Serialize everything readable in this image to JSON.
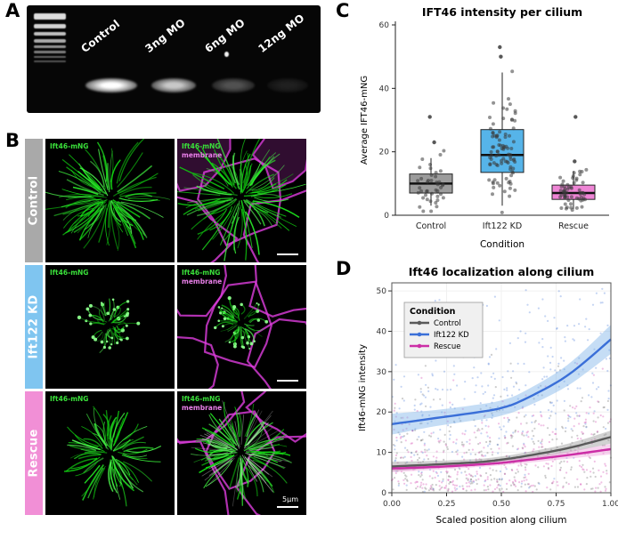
{
  "panel_a": {
    "label": "A",
    "lane_labels": [
      "Control",
      "3ng MO",
      "6ng MO",
      "12ng MO"
    ],
    "band_intensities": [
      1,
      0.78,
      0.3,
      0.1
    ],
    "ladder_bands": [
      {
        "y": 4,
        "h": 7,
        "o": 0.95
      },
      {
        "y": 16,
        "h": 5,
        "o": 0.9
      },
      {
        "y": 25,
        "h": 4,
        "o": 0.82
      },
      {
        "y": 33,
        "h": 4,
        "o": 0.72
      },
      {
        "y": 40,
        "h": 3,
        "o": 0.62
      },
      {
        "y": 46,
        "h": 3,
        "o": 0.52
      },
      {
        "y": 52,
        "h": 2,
        "o": 0.42
      },
      {
        "y": 57,
        "h": 2,
        "o": 0.34
      }
    ]
  },
  "panel_b": {
    "label": "B",
    "green_tag": "Ift46-mNG",
    "magenta_tag": "membrane",
    "scale_bar_label": "5µm",
    "rows": [
      {
        "condition": "Control",
        "strip_color": "#a9a9a9",
        "cilia": {
          "count": 85,
          "min_len": 26,
          "max_len": 58,
          "tips": false
        }
      },
      {
        "condition": "Ift122 KD",
        "strip_color": "#7fc5f0",
        "cilia": {
          "count": 45,
          "min_len": 8,
          "max_len": 24,
          "tips": true
        }
      },
      {
        "condition": "Rescue",
        "strip_color": "#f18fd6",
        "cilia": {
          "count": 75,
          "min_len": 22,
          "max_len": 48,
          "tips": false
        }
      }
    ]
  },
  "chart_data": [
    {
      "panel": "C",
      "type": "boxplot",
      "title": "IFT46 intensity per cilium",
      "xlabel": "Condition",
      "ylabel": "Average IFT46-mNG",
      "ylim": [
        0,
        60
      ],
      "yticks": [
        0,
        20,
        40,
        60
      ],
      "categories": [
        "Control",
        "Ift122 KD",
        "Rescue"
      ],
      "box_colors": [
        "#9c9c9c",
        "#56b4e9",
        "#ee85d5"
      ],
      "point_color": "#3a3a3a",
      "boxes": [
        {
          "whisker_low": 3,
          "q1": 7,
          "median": 10,
          "q3": 13,
          "whisker_high": 18,
          "outliers": [
            23,
            31
          ]
        },
        {
          "whisker_low": 3,
          "q1": 13.5,
          "median": 19,
          "q3": 27,
          "whisker_high": 45,
          "outliers": [
            50,
            53
          ]
        },
        {
          "whisker_low": 2,
          "q1": 5,
          "median": 7,
          "q3": 9.5,
          "whisker_high": 14,
          "outliers": [
            17,
            31
          ]
        }
      ],
      "jitter": [
        {
          "n": 42,
          "center": 10,
          "spread": 4.5
        },
        {
          "n": 90,
          "center": 19,
          "spread": 9
        },
        {
          "n": 60,
          "center": 7.5,
          "spread": 3.2
        }
      ]
    },
    {
      "panel": "D",
      "type": "scatter-smooth",
      "title": "Ift46 localization along cilium",
      "xlabel": "Scaled position along cilium",
      "ylabel": "Ift46-mNG intensity",
      "xlim": [
        0,
        1
      ],
      "ylim": [
        0,
        52
      ],
      "xticks": [
        "0.00",
        "0.25",
        "0.50",
        "0.75",
        "1.00"
      ],
      "yticks": [
        0,
        10,
        20,
        30,
        40,
        50
      ],
      "legend_title": "Condition",
      "series": [
        {
          "name": "Control",
          "color": "#5a5a5a",
          "band_color": "#9a9a9a",
          "x": [
            0,
            0.2,
            0.4,
            0.5,
            0.6,
            0.8,
            1.0
          ],
          "y": [
            6.5,
            7,
            7.6,
            8.2,
            9,
            11,
            13.8
          ],
          "hw": [
            1.2,
            0.9,
            0.8,
            0.8,
            0.9,
            1.1,
            1.6
          ],
          "scatter_n": 330,
          "scatter_spread": 9
        },
        {
          "name": "Ift122 KD",
          "color": "#3a6fd8",
          "band_color": "#7fb3e8",
          "x": [
            0,
            0.2,
            0.4,
            0.5,
            0.6,
            0.8,
            1.0
          ],
          "y": [
            17,
            18.5,
            20,
            21,
            23,
            29,
            38
          ],
          "hw": [
            2.6,
            2.0,
            1.9,
            1.9,
            2.0,
            2.6,
            3.6
          ],
          "scatter_n": 330,
          "scatter_spread": 13
        },
        {
          "name": "Rescue",
          "color": "#cc2ea6",
          "band_color": "#f0a0dc",
          "x": [
            0,
            0.2,
            0.4,
            0.5,
            0.6,
            0.8,
            1.0
          ],
          "y": [
            6,
            6.4,
            7,
            7.4,
            8,
            9.3,
            10.8
          ],
          "hw": [
            0.9,
            0.7,
            0.6,
            0.6,
            0.7,
            0.9,
            1.3
          ],
          "scatter_n": 330,
          "scatter_spread": 8
        }
      ]
    }
  ]
}
